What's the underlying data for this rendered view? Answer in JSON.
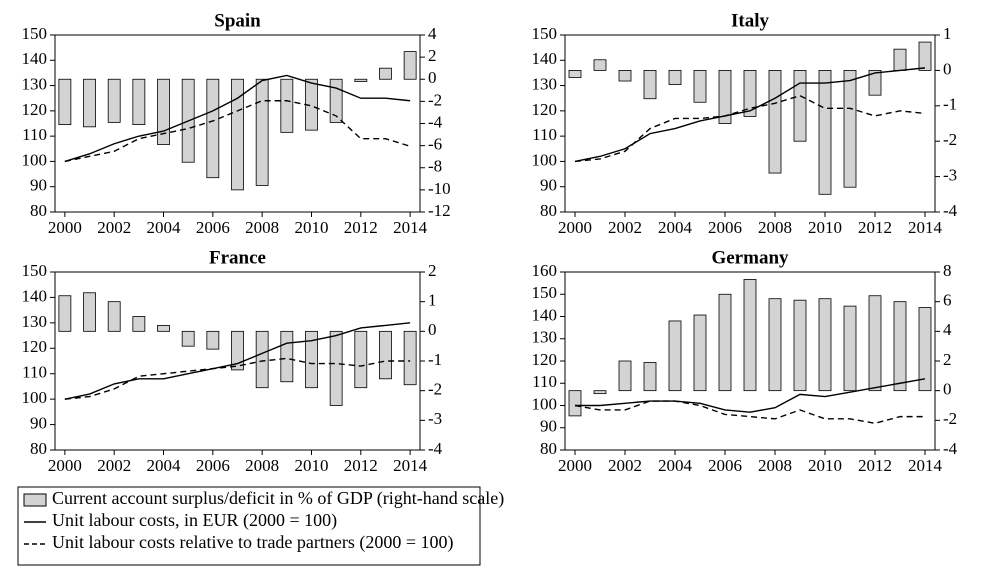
{
  "chart_data": [
    {
      "type": "combo",
      "title": "Spain",
      "x": [
        2000,
        2001,
        2002,
        2003,
        2004,
        2005,
        2006,
        2007,
        2008,
        2009,
        2010,
        2011,
        2012,
        2013,
        2014
      ],
      "xlim": [
        1999.6,
        2014.4
      ],
      "xticks": [
        2000,
        2002,
        2004,
        2006,
        2008,
        2010,
        2012,
        2014
      ],
      "ylim": [
        80,
        150
      ],
      "yticks": [
        80,
        90,
        100,
        110,
        120,
        130,
        140,
        150
      ],
      "y2lim": [
        -12,
        4
      ],
      "y2ticks": [
        -12,
        -10,
        -8,
        -6,
        -4,
        -2,
        0,
        2,
        4
      ],
      "series": [
        {
          "name": "Current account surplus/deficit in % of GDP (right-hand scale)",
          "type": "bar",
          "axis": "y2",
          "color": "#d3d3d3",
          "values": [
            -4.1,
            -4.3,
            -3.9,
            -4.1,
            -5.9,
            -7.5,
            -8.9,
            -10,
            -9.6,
            -4.8,
            -4.6,
            -3.9,
            -0.2,
            1.0,
            2.5
          ]
        },
        {
          "name": "Unit labour costs, in EUR (2000 = 100)",
          "type": "line",
          "color": "#000000",
          "dash": false,
          "values": [
            100,
            103,
            107,
            110,
            112,
            116,
            120,
            125,
            132,
            134,
            131,
            129,
            125,
            125,
            124
          ]
        },
        {
          "name": "Unit labour costs relative to trade partners (2000 = 100)",
          "type": "line",
          "color": "#000000",
          "dash": true,
          "values": [
            100,
            102,
            104,
            109,
            111,
            113,
            116,
            120,
            124,
            124,
            122,
            118,
            109,
            109,
            106
          ]
        }
      ]
    },
    {
      "type": "combo",
      "title": "Italy",
      "x": [
        2000,
        2001,
        2002,
        2003,
        2004,
        2005,
        2006,
        2007,
        2008,
        2009,
        2010,
        2011,
        2012,
        2013,
        2014
      ],
      "xlim": [
        1999.6,
        2014.4
      ],
      "xticks": [
        2000,
        2002,
        2004,
        2006,
        2008,
        2010,
        2012,
        2014
      ],
      "ylim": [
        80,
        150
      ],
      "yticks": [
        80,
        90,
        100,
        110,
        120,
        130,
        140,
        150
      ],
      "y2lim": [
        -4,
        1
      ],
      "y2ticks": [
        -4,
        -3,
        -2,
        -1,
        0,
        1
      ],
      "series": [
        {
          "type": "bar",
          "axis": "y2",
          "color": "#d3d3d3",
          "values": [
            -0.2,
            0.3,
            -0.3,
            -0.8,
            -0.4,
            -0.9,
            -1.5,
            -1.3,
            -2.9,
            -2.0,
            -3.5,
            -3.3,
            -0.7,
            0.6,
            0.8
          ]
        },
        {
          "type": "line",
          "color": "#000000",
          "dash": false,
          "values": [
            100,
            102,
            105,
            111,
            113,
            116,
            118,
            120,
            125,
            131,
            131,
            132,
            135,
            136,
            137
          ]
        },
        {
          "type": "line",
          "color": "#000000",
          "dash": true,
          "values": [
            100,
            101,
            104,
            113,
            117,
            117,
            118,
            121,
            123,
            126,
            121,
            121,
            118,
            120,
            119
          ]
        }
      ]
    },
    {
      "type": "combo",
      "title": "France",
      "x": [
        2000,
        2001,
        2002,
        2003,
        2004,
        2005,
        2006,
        2007,
        2008,
        2009,
        2010,
        2011,
        2012,
        2013,
        2014
      ],
      "xlim": [
        1999.6,
        2014.4
      ],
      "xticks": [
        2000,
        2002,
        2004,
        2006,
        2008,
        2010,
        2012,
        2014
      ],
      "ylim": [
        80,
        150
      ],
      "yticks": [
        80,
        90,
        100,
        110,
        120,
        130,
        140,
        150
      ],
      "y2lim": [
        -4,
        2
      ],
      "y2ticks": [
        -4,
        -3,
        -2,
        -1,
        0,
        1,
        2
      ],
      "series": [
        {
          "type": "bar",
          "axis": "y2",
          "color": "#d3d3d3",
          "values": [
            1.2,
            1.3,
            1.0,
            0.5,
            0.2,
            -0.5,
            -0.6,
            -1.3,
            -1.9,
            -1.7,
            -1.9,
            -2.5,
            -1.9,
            -1.6,
            -1.8
          ]
        },
        {
          "type": "line",
          "color": "#000000",
          "dash": false,
          "values": [
            100,
            102,
            106,
            108,
            108,
            110,
            112,
            114,
            118,
            122,
            123,
            125,
            128,
            129,
            130
          ]
        },
        {
          "type": "line",
          "color": "#000000",
          "dash": true,
          "values": [
            100,
            101,
            104,
            109,
            110,
            111,
            112,
            113,
            115,
            116,
            114,
            114,
            113,
            115,
            115
          ]
        }
      ]
    },
    {
      "type": "combo",
      "title": "Germany",
      "x": [
        2000,
        2001,
        2002,
        2003,
        2004,
        2005,
        2006,
        2007,
        2008,
        2009,
        2010,
        2011,
        2012,
        2013,
        2014
      ],
      "xlim": [
        1999.6,
        2014.4
      ],
      "xticks": [
        2000,
        2002,
        2004,
        2006,
        2008,
        2010,
        2012,
        2014
      ],
      "ylim": [
        80,
        160
      ],
      "yticks": [
        80,
        90,
        100,
        110,
        120,
        130,
        140,
        150,
        160
      ],
      "y2lim": [
        -4,
        8
      ],
      "y2ticks": [
        -4,
        -2,
        0,
        2,
        4,
        6,
        8
      ],
      "series": [
        {
          "type": "bar",
          "axis": "y2",
          "color": "#d3d3d3",
          "values": [
            -1.7,
            -0.2,
            2.0,
            1.9,
            4.7,
            5.1,
            6.5,
            7.5,
            6.2,
            6.1,
            6.2,
            5.7,
            6.4,
            6.0,
            5.6
          ]
        },
        {
          "type": "line",
          "color": "#000000",
          "dash": false,
          "values": [
            100,
            100,
            101,
            102,
            102,
            101,
            98,
            97,
            99,
            105,
            104,
            106,
            108,
            110,
            112
          ]
        },
        {
          "type": "line",
          "color": "#000000",
          "dash": true,
          "values": [
            100,
            98,
            98,
            102,
            102,
            100,
            96,
            95,
            94,
            98,
            94,
            94,
            92,
            95,
            95
          ]
        }
      ]
    }
  ]
}
